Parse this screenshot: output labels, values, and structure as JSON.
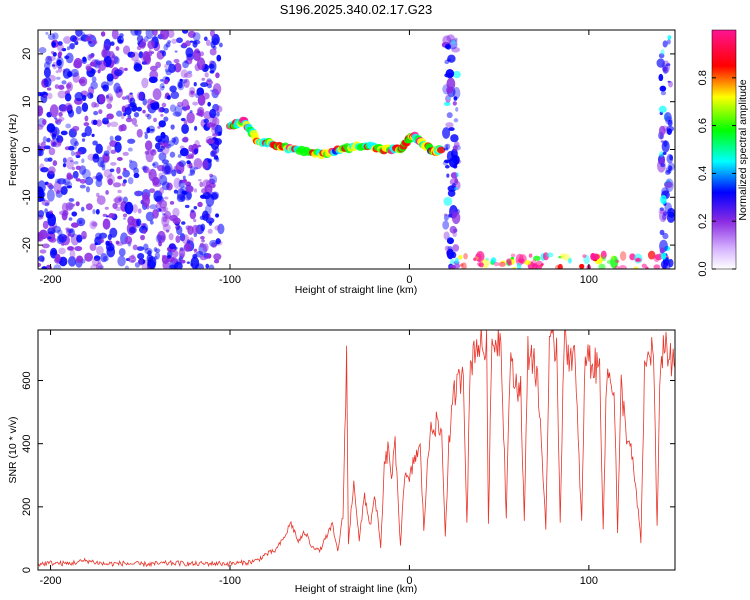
{
  "title": "S196.2025.340.02.17.G23",
  "chart_data": [
    {
      "type": "heatmap",
      "xlabel": "Height of straight line (km)",
      "ylabel": "Frequency (Hz)",
      "xlim": [
        -207,
        148
      ],
      "ylim": [
        -25,
        25
      ],
      "xticks": [
        -200,
        -100,
        0,
        100
      ],
      "yticks": [
        20,
        10,
        0,
        -10,
        -20
      ],
      "grid": false,
      "colorbar": {
        "label": "Normalized spectral amplitude",
        "range": [
          0,
          1
        ],
        "ticks": [
          0.0,
          0.2,
          0.4,
          0.6,
          0.8
        ],
        "tick_labels": [
          "0.0",
          "0.2",
          "0.4",
          "0.6",
          "0.8"
        ],
        "colors": [
          "#ffffff",
          "#8a2be2",
          "#0000ff",
          "#00ffff",
          "#00ff00",
          "#ffff00",
          "#ff0000",
          "#ff1493"
        ]
      },
      "features": [
        {
          "name": "diffuse noise",
          "x_range": [
            -207,
            -105
          ],
          "y_range": [
            -25,
            25
          ],
          "level": 0.15
        },
        {
          "name": "straight-line trace",
          "points": [
            [
              -100,
              5
            ],
            [
              -92,
              6
            ],
            [
              -85,
              2
            ],
            [
              -75,
              1
            ],
            [
              -65,
              0
            ],
            [
              -50,
              -1
            ],
            [
              -38,
              0
            ],
            [
              -25,
              1
            ],
            [
              -15,
              0
            ],
            [
              -5,
              0
            ],
            [
              2,
              3
            ],
            [
              8,
              1
            ],
            [
              14,
              -0.5
            ],
            [
              18,
              0
            ]
          ],
          "level": 0.55
        },
        {
          "name": "edge response",
          "x_range": [
            20,
            27
          ],
          "y_range": [
            -25,
            25
          ],
          "level": 0.2
        },
        {
          "name": "low-frequency saturation",
          "x_range": [
            28,
            145
          ],
          "y_range": [
            -25,
            -22
          ],
          "level": 0.8
        },
        {
          "name": "right edge",
          "x_range": [
            140,
            146
          ],
          "y_range": [
            -25,
            25
          ],
          "level": 0.2
        }
      ]
    },
    {
      "type": "line",
      "xlabel": "Height of straight line (km)",
      "ylabel": "SNR (10 * v/v)",
      "xlim": [
        -207,
        148
      ],
      "ylim": [
        0,
        760
      ],
      "xticks": [
        -200,
        -100,
        0,
        100
      ],
      "yticks": [
        0,
        200,
        400,
        600
      ],
      "grid": false,
      "series": [
        {
          "color": "#e8342a",
          "points": [
            [
              -207,
              18
            ],
            [
              -200,
              22
            ],
            [
              -190,
              20
            ],
            [
              -180,
              30
            ],
            [
              -170,
              19
            ],
            [
              -160,
              21
            ],
            [
              -150,
              18
            ],
            [
              -140,
              20
            ],
            [
              -130,
              22
            ],
            [
              -120,
              19
            ],
            [
              -110,
              21
            ],
            [
              -100,
              20
            ],
            [
              -90,
              24
            ],
            [
              -85,
              30
            ],
            [
              -80,
              50
            ],
            [
              -75,
              60
            ],
            [
              -70,
              100
            ],
            [
              -66,
              150
            ],
            [
              -62,
              90
            ],
            [
              -58,
              120
            ],
            [
              -55,
              80
            ],
            [
              -50,
              60
            ],
            [
              -46,
              110
            ],
            [
              -43,
              140
            ],
            [
              -40,
              60
            ],
            [
              -37,
              170
            ],
            [
              -35,
              690
            ],
            [
              -34,
              80
            ],
            [
              -31,
              290
            ],
            [
              -28,
              90
            ],
            [
              -25,
              240
            ],
            [
              -22,
              140
            ],
            [
              -19,
              230
            ],
            [
              -16,
              70
            ],
            [
              -14,
              320
            ],
            [
              -12,
              380
            ],
            [
              -10,
              300
            ],
            [
              -8,
              390
            ],
            [
              -5,
              80
            ],
            [
              -3,
              290
            ],
            [
              0,
              280
            ],
            [
              3,
              360
            ],
            [
              6,
              380
            ],
            [
              8,
              130
            ],
            [
              10,
              320
            ],
            [
              12,
              470
            ],
            [
              15,
              460
            ],
            [
              18,
              430
            ],
            [
              20,
              110
            ],
            [
              22,
              400
            ],
            [
              25,
              560
            ],
            [
              28,
              600
            ],
            [
              30,
              650
            ],
            [
              32,
              150
            ],
            [
              34,
              650
            ],
            [
              37,
              720
            ],
            [
              40,
              710
            ],
            [
              43,
              700
            ],
            [
              44,
              160
            ],
            [
              46,
              720
            ],
            [
              48,
              730
            ],
            [
              51,
              740
            ],
            [
              54,
              170
            ],
            [
              56,
              650
            ],
            [
              59,
              590
            ],
            [
              62,
              580
            ],
            [
              64,
              150
            ],
            [
              66,
              690
            ],
            [
              69,
              680
            ],
            [
              72,
              560
            ],
            [
              76,
              140
            ],
            [
              78,
              690
            ],
            [
              82,
              720
            ],
            [
              84,
              160
            ],
            [
              86,
              710
            ],
            [
              89,
              690
            ],
            [
              92,
              680
            ],
            [
              96,
              150
            ],
            [
              98,
              690
            ],
            [
              102,
              650
            ],
            [
              106,
              640
            ],
            [
              108,
              140
            ],
            [
              110,
              620
            ],
            [
              114,
              590
            ],
            [
              116,
              120
            ],
            [
              118,
              580
            ],
            [
              121,
              430
            ],
            [
              124,
              360
            ],
            [
              127,
              210
            ],
            [
              129,
              90
            ],
            [
              131,
              620
            ],
            [
              134,
              700
            ],
            [
              136,
              690
            ],
            [
              138,
              130
            ],
            [
              140,
              680
            ],
            [
              143,
              720
            ],
            [
              146,
              650
            ],
            [
              148,
              640
            ]
          ]
        }
      ]
    }
  ]
}
